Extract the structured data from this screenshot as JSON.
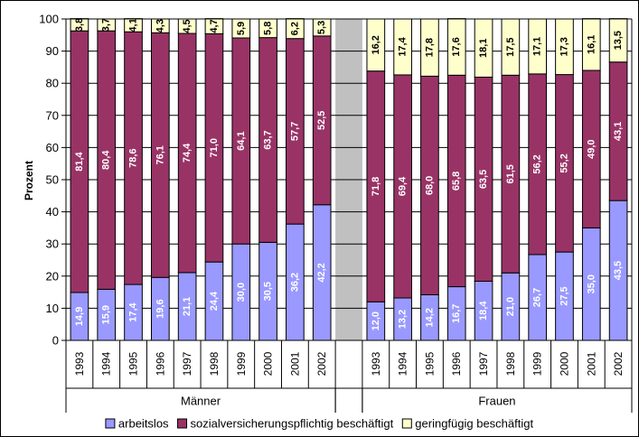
{
  "chart_data": {
    "type": "bar",
    "stacked": true,
    "ylabel": "Prozent",
    "ylim": [
      0,
      100
    ],
    "yticks": [
      "0",
      "10",
      "20",
      "30",
      "40",
      "50",
      "60",
      "70",
      "80",
      "90",
      "100"
    ],
    "groups": [
      {
        "name": "Männer",
        "categories": [
          "1993",
          "1994",
          "1995",
          "1996",
          "1997",
          "1998",
          "1999",
          "2000",
          "2001",
          "2002"
        ],
        "series": [
          {
            "name": "arbeitslos",
            "values": [
              14.9,
              15.9,
              17.4,
              19.6,
              21.1,
              24.4,
              30.0,
              30.5,
              36.2,
              42.2
            ],
            "labels": [
              "14,9",
              "15,9",
              "17,4",
              "19,6",
              "21,1",
              "24,4",
              "30,0",
              "30,5",
              "36,2",
              "42,2"
            ]
          },
          {
            "name": "sozialversicherungspflichtig beschäftigt",
            "values": [
              81.4,
              80.4,
              78.6,
              76.1,
              74.4,
              71.0,
              64.1,
              63.7,
              57.7,
              52.5
            ],
            "labels": [
              "81,4",
              "80,4",
              "78,6",
              "76,1",
              "74,4",
              "71,0",
              "64,1",
              "63,7",
              "57,7",
              "52,5"
            ]
          },
          {
            "name": "geringfügig beschäftigt",
            "values": [
              3.8,
              3.7,
              4.1,
              4.3,
              4.5,
              4.7,
              5.9,
              5.8,
              6.2,
              5.3
            ],
            "labels": [
              "3,8",
              "3,7",
              "4,1",
              "4,3",
              "4,5",
              "4,7",
              "5,9",
              "5,8",
              "6,2",
              "5,3"
            ]
          }
        ]
      },
      {
        "name": "Frauen",
        "categories": [
          "1993",
          "1994",
          "1995",
          "1996",
          "1997",
          "1998",
          "1999",
          "2000",
          "2001",
          "2002"
        ],
        "series": [
          {
            "name": "arbeitslos",
            "values": [
              12.0,
              13.2,
              14.2,
              16.7,
              18.4,
              21.0,
              26.7,
              27.5,
              35.0,
              43.5
            ],
            "labels": [
              "12,0",
              "13,2",
              "14,2",
              "16,7",
              "18,4",
              "21,0",
              "26,7",
              "27,5",
              "35,0",
              "43,5"
            ]
          },
          {
            "name": "sozialversicherungspflichtig beschäftigt",
            "values": [
              71.8,
              69.4,
              68.0,
              65.8,
              63.5,
              61.5,
              56.2,
              55.2,
              49.0,
              43.1
            ],
            "labels": [
              "71,8",
              "69,4",
              "68,0",
              "65,8",
              "63,5",
              "61,5",
              "56,2",
              "55,2",
              "49,0",
              "43,1"
            ]
          },
          {
            "name": "geringfügig beschäftigt",
            "values": [
              16.2,
              17.4,
              17.8,
              17.6,
              18.1,
              17.5,
              17.1,
              17.3,
              16.1,
              13.5
            ],
            "labels": [
              "16,2",
              "17,4",
              "17,8",
              "17,6",
              "18,1",
              "17,5",
              "17,1",
              "17,3",
              "16,1",
              "13,5"
            ]
          }
        ]
      }
    ],
    "legend": {
      "placement": "bottom",
      "entries": [
        "arbeitslos",
        "sozialversicherungspflichtig beschäftigt",
        "geringfügig beschäftigt"
      ]
    },
    "colors": {
      "arbeitslos": "#9999ff",
      "sozialversicherungspflichtig beschäftigt": "#993366",
      "geringfügig beschäftigt": "#ffffcc",
      "plot_background": "#c0c0c0",
      "group_background": "#ffffff"
    },
    "label_colors": {
      "arbeitslos": "#ffffff",
      "sozialversicherungspflichtig beschäftigt": "#ffffff",
      "geringfügig beschäftigt": "#000000"
    }
  }
}
